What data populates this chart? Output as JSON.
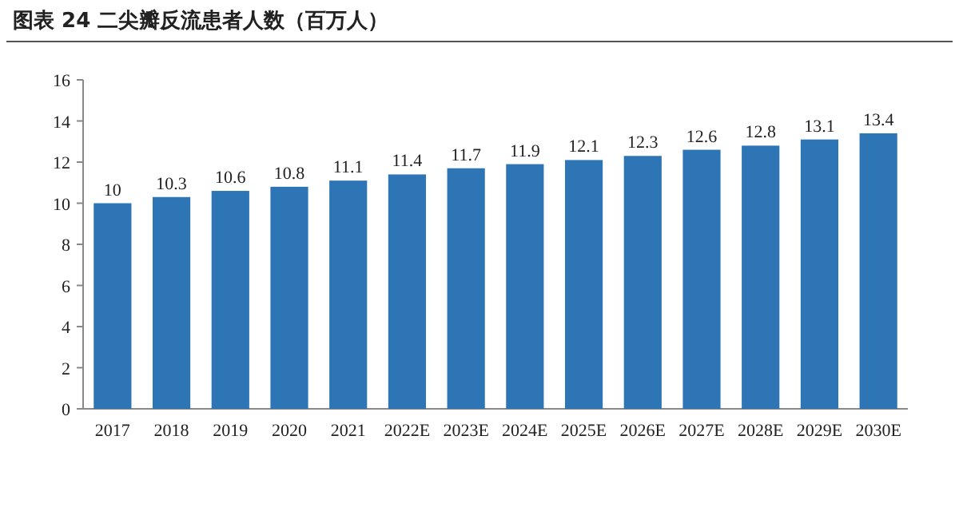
{
  "chart_data": {
    "type": "bar",
    "title": "图表 24  二尖瓣反流患者人数（百万人）",
    "categories": [
      "2017",
      "2018",
      "2019",
      "2020",
      "2021",
      "2022E",
      "2023E",
      "2024E",
      "2025E",
      "2026E",
      "2027E",
      "2028E",
      "2029E",
      "2030E"
    ],
    "values": [
      10,
      10.3,
      10.6,
      10.8,
      11.1,
      11.4,
      11.7,
      11.9,
      12.1,
      12.3,
      12.6,
      12.8,
      13.1,
      13.4
    ],
    "color": "#2e75b6",
    "ylim": [
      0,
      16
    ],
    "yticks": [
      0,
      2,
      4,
      6,
      8,
      10,
      12,
      14,
      16
    ],
    "data_labels": true
  }
}
